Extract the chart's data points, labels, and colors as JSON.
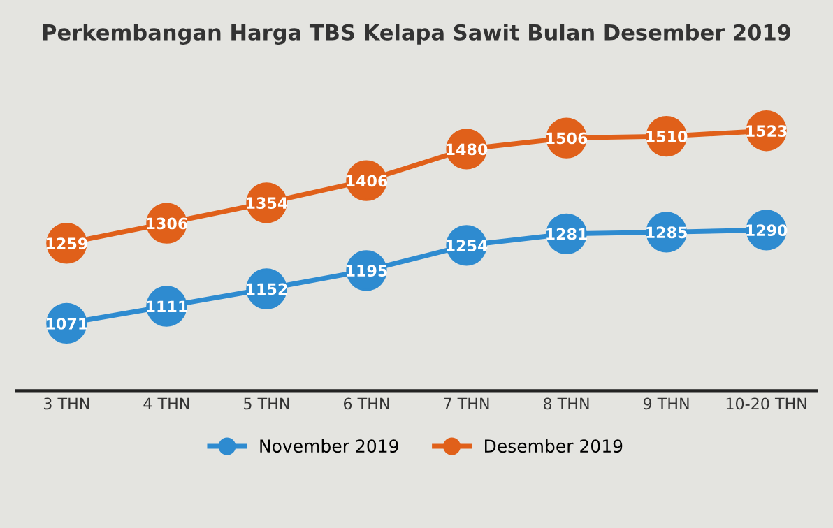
{
  "chart_data": {
    "type": "line",
    "title": "Perkembangan Harga TBS Kelapa Sawit Bulan Desember 2019",
    "categories": [
      "3 THN",
      "4 THN",
      "5 THN",
      "6 THN",
      "7 THN",
      "8 THN",
      "9 THN",
      "10-20 THN"
    ],
    "series": [
      {
        "name": "November 2019",
        "color": "#2e8bd0",
        "values": [
          1071,
          1111,
          1152,
          1195,
          1254,
          1281,
          1285,
          1290
        ]
      },
      {
        "name": "Desember 2019",
        "color": "#e0601a",
        "values": [
          1259,
          1306,
          1354,
          1406,
          1480,
          1506,
          1510,
          1523
        ]
      }
    ],
    "tick_labels": "x",
    "legend": "bottom",
    "marker": "circle",
    "line_style": "solid",
    "data_labels": true
  }
}
